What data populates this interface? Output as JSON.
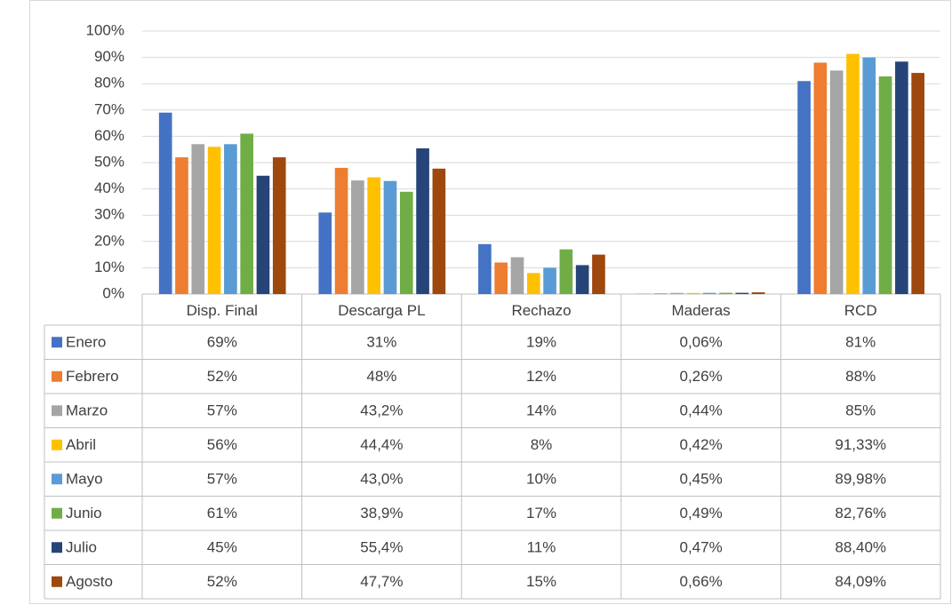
{
  "chart_data": {
    "type": "bar",
    "categories": [
      "Disp. Final",
      "Descarga PL",
      "Rechazo",
      "Maderas",
      "RCD"
    ],
    "ylim": [
      0,
      100
    ],
    "yticks": [
      {
        "value": 0,
        "label": "0%"
      },
      {
        "value": 10,
        "label": "10%"
      },
      {
        "value": 20,
        "label": "20%"
      },
      {
        "value": 30,
        "label": "30%"
      },
      {
        "value": 40,
        "label": "40%"
      },
      {
        "value": 50,
        "label": "50%"
      },
      {
        "value": 60,
        "label": "60%"
      },
      {
        "value": 70,
        "label": "70%"
      },
      {
        "value": 80,
        "label": "80%"
      },
      {
        "value": 90,
        "label": "90%"
      },
      {
        "value": 100,
        "label": "100%"
      }
    ],
    "grid": true,
    "series": [
      {
        "name": "Enero",
        "color": "#4472c4",
        "values": [
          69,
          31,
          19,
          0.06,
          81
        ],
        "value_labels": [
          "69%",
          "31%",
          "19%",
          "0,06%",
          "81%"
        ]
      },
      {
        "name": "Febrero",
        "color": "#ed7d31",
        "values": [
          52,
          48,
          12,
          0.26,
          88
        ],
        "value_labels": [
          "52%",
          "48%",
          "12%",
          "0,26%",
          "88%"
        ]
      },
      {
        "name": "Marzo",
        "color": "#a5a5a5",
        "values": [
          57,
          43.2,
          14,
          0.44,
          85
        ],
        "value_labels": [
          "57%",
          "43,2%",
          "14%",
          "0,44%",
          "85%"
        ]
      },
      {
        "name": "Abril",
        "color": "#ffc000",
        "values": [
          56,
          44.4,
          8,
          0.42,
          91.33
        ],
        "value_labels": [
          "56%",
          "44,4%",
          "8%",
          "0,42%",
          "91,33%"
        ]
      },
      {
        "name": "Mayo",
        "color": "#5b9bd5",
        "values": [
          57,
          43.0,
          10,
          0.45,
          89.98
        ],
        "value_labels": [
          "57%",
          "43,0%",
          "10%",
          "0,45%",
          "89,98%"
        ]
      },
      {
        "name": "Junio",
        "color": "#70ad47",
        "values": [
          61,
          38.9,
          17,
          0.49,
          82.76
        ],
        "value_labels": [
          "61%",
          "38,9%",
          "17%",
          "0,49%",
          "82,76%"
        ]
      },
      {
        "name": "Julio",
        "color": "#264478",
        "values": [
          45,
          55.4,
          11,
          0.47,
          88.4
        ],
        "value_labels": [
          "45%",
          "55,4%",
          "11%",
          "0,47%",
          "88,40%"
        ]
      },
      {
        "name": "Agosto",
        "color": "#9e480e",
        "values": [
          52,
          47.7,
          15,
          0.66,
          84.09
        ],
        "value_labels": [
          "52%",
          "47,7%",
          "15%",
          "0,66%",
          "84,09%"
        ]
      }
    ]
  }
}
